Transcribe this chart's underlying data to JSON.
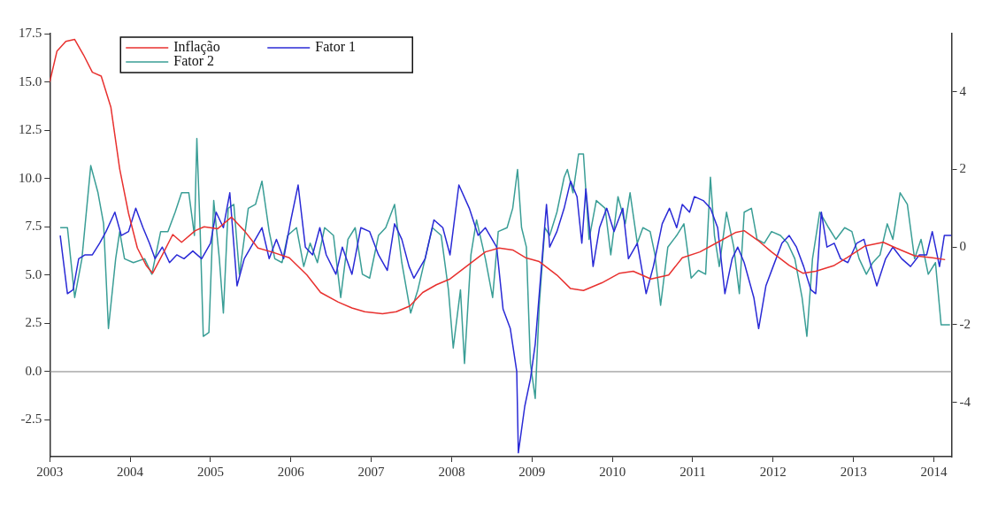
{
  "chart_data": {
    "type": "line",
    "xlim": [
      2003,
      2014.22
    ],
    "xticks": [
      2003,
      2004,
      2005,
      2006,
      2007,
      2008,
      2009,
      2010,
      2011,
      2012,
      2013,
      2014
    ],
    "ylim": [
      -4.4,
      17.5
    ],
    "yticks": [
      {
        "value": -2.5,
        "label": "-2.5"
      },
      {
        "value": 0,
        "label": "0.0"
      },
      {
        "value": 2.5,
        "label": "2.5"
      },
      {
        "value": 5,
        "label": "5.0"
      },
      {
        "value": 7.5,
        "label": "7.5"
      },
      {
        "value": 10,
        "label": "10.0"
      },
      {
        "value": 12.5,
        "label": "12.5"
      },
      {
        "value": 15,
        "label": "15.0"
      },
      {
        "value": 17.5,
        "label": "17.5"
      }
    ],
    "y2lim": [
      -5.4,
      5.5
    ],
    "y2ticks": [
      -4,
      -2,
      0,
      2,
      4
    ],
    "grid": false,
    "legend": "top left",
    "ref_lines": [
      {
        "axis": "y",
        "value": 0,
        "color": "#808080"
      }
    ],
    "series": [
      {
        "name": "Inflação",
        "color": "#e8312f",
        "x": [
          2003.0,
          2003.09,
          2003.2,
          2003.31,
          2003.42,
          2003.53,
          2003.64,
          2003.76,
          2003.87,
          2003.98,
          2004.09,
          2004.2,
          2004.28,
          2004.42,
          2004.53,
          2004.64,
          2004.81,
          2004.92,
          2005.09,
          2005.26,
          2005.42,
          2005.59,
          2005.76,
          2005.98,
          2006.2,
          2006.37,
          2006.59,
          2006.76,
          2006.92,
          2007.14,
          2007.31,
          2007.48,
          2007.64,
          2007.81,
          2007.98,
          2008.2,
          2008.42,
          2008.59,
          2008.76,
          2008.92,
          2009.09,
          2009.31,
          2009.48,
          2009.64,
          2009.87,
          2010.09,
          2010.26,
          2010.48,
          2010.7,
          2010.87,
          2011.09,
          2011.31,
          2011.53,
          2011.64,
          2011.81,
          2011.98,
          2012.2,
          2012.37,
          2012.53,
          2012.76,
          2012.92,
          2013.14,
          2013.37,
          2013.53,
          2013.76,
          2013.98,
          2014.14
        ],
        "values": [
          15.0,
          16.6,
          17.1,
          17.2,
          16.4,
          15.5,
          15.3,
          13.7,
          10.5,
          8.2,
          6.4,
          5.5,
          5.1,
          6.2,
          7.1,
          6.7,
          7.3,
          7.5,
          7.4,
          8.0,
          7.3,
          6.4,
          6.2,
          5.9,
          5.0,
          4.1,
          3.6,
          3.3,
          3.1,
          3.0,
          3.1,
          3.4,
          4.1,
          4.5,
          4.8,
          5.5,
          6.2,
          6.4,
          6.3,
          5.9,
          5.7,
          5.0,
          4.3,
          4.2,
          4.6,
          5.1,
          5.2,
          4.8,
          5.0,
          5.9,
          6.2,
          6.7,
          7.2,
          7.3,
          6.8,
          6.2,
          5.5,
          5.1,
          5.2,
          5.5,
          5.9,
          6.5,
          6.7,
          6.4,
          6.0,
          5.9,
          5.8
        ]
      },
      {
        "name": "Fator 1",
        "color": "#2a2ad6",
        "axis": "y2",
        "x": [
          2003.13,
          2003.22,
          2003.29,
          2003.36,
          2003.44,
          2003.53,
          2003.62,
          2003.7,
          2003.81,
          2003.89,
          2003.98,
          2004.07,
          2004.16,
          2004.24,
          2004.31,
          2004.4,
          2004.49,
          2004.58,
          2004.67,
          2004.78,
          2004.89,
          2005.0,
          2005.07,
          2005.16,
          2005.24,
          2005.33,
          2005.42,
          2005.53,
          2005.64,
          2005.73,
          2005.82,
          2005.91,
          2006.0,
          2006.09,
          2006.18,
          2006.27,
          2006.36,
          2006.44,
          2006.56,
          2006.64,
          2006.76,
          2006.87,
          2006.98,
          2007.09,
          2007.2,
          2007.29,
          2007.38,
          2007.47,
          2007.53,
          2007.67,
          2007.78,
          2007.89,
          2007.98,
          2008.09,
          2008.22,
          2008.33,
          2008.42,
          2008.56,
          2008.64,
          2008.73,
          2008.81,
          2008.83,
          2008.91,
          2008.98,
          2009.04,
          2009.11,
          2009.18,
          2009.22,
          2009.31,
          2009.4,
          2009.48,
          2009.56,
          2009.62,
          2009.67,
          2009.76,
          2009.84,
          2009.93,
          2010.02,
          2010.13,
          2010.2,
          2010.31,
          2010.42,
          2010.51,
          2010.62,
          2010.71,
          2010.8,
          2010.87,
          2010.96,
          2011.02,
          2011.13,
          2011.22,
          2011.31,
          2011.4,
          2011.49,
          2011.56,
          2011.64,
          2011.76,
          2011.82,
          2011.91,
          2012.0,
          2012.11,
          2012.2,
          2012.29,
          2012.38,
          2012.47,
          2012.53,
          2012.6,
          2012.67,
          2012.76,
          2012.84,
          2012.93,
          2013.04,
          2013.13,
          2013.22,
          2013.29,
          2013.4,
          2013.49,
          2013.6,
          2013.71,
          2013.82,
          2013.91,
          2013.98,
          2014.07,
          2014.13,
          2014.22
        ],
        "values": [
          0.3,
          -1.2,
          -1.1,
          -0.3,
          -0.2,
          -0.2,
          0.1,
          0.4,
          0.9,
          0.3,
          0.4,
          1.0,
          0.5,
          0.1,
          -0.3,
          0.0,
          -0.4,
          -0.2,
          -0.3,
          -0.1,
          -0.3,
          0.1,
          0.9,
          0.5,
          1.4,
          -1.0,
          -0.3,
          0.1,
          0.5,
          -0.3,
          0.2,
          -0.3,
          0.7,
          1.6,
          0.0,
          -0.2,
          0.5,
          -0.2,
          -0.7,
          0.0,
          -0.7,
          0.5,
          0.4,
          -0.2,
          -0.6,
          0.6,
          0.2,
          -0.5,
          -0.8,
          -0.3,
          0.7,
          0.5,
          -0.2,
          1.6,
          1.0,
          0.3,
          0.5,
          0.0,
          -1.6,
          -2.1,
          -3.2,
          -5.3,
          -4.1,
          -3.4,
          -2.5,
          -0.7,
          1.1,
          0.0,
          0.4,
          1.0,
          1.7,
          1.3,
          0.1,
          1.5,
          -0.5,
          0.5,
          1.0,
          0.4,
          1.0,
          -0.3,
          0.1,
          -1.2,
          -0.5,
          0.6,
          1.0,
          0.5,
          1.1,
          0.9,
          1.3,
          1.2,
          1.0,
          0.5,
          -1.2,
          -0.3,
          0.0,
          -0.4,
          -1.3,
          -2.1,
          -1.0,
          -0.5,
          0.1,
          0.3,
          0.0,
          -0.5,
          -1.1,
          -1.2,
          0.9,
          0.0,
          0.1,
          -0.3,
          -0.4,
          0.1,
          0.2,
          -0.5,
          -1.0,
          -0.3,
          0.0,
          -0.3,
          -0.5,
          -0.2,
          -0.2,
          0.4,
          -0.5,
          0.3,
          0.3
        ]
      },
      {
        "name": "Fator 2",
        "color": "#3a9e96",
        "axis": "y2",
        "x": [
          2003.13,
          2003.22,
          2003.31,
          2003.4,
          2003.51,
          2003.6,
          2003.67,
          2003.73,
          2003.82,
          2003.87,
          2003.93,
          2004.04,
          2004.18,
          2004.27,
          2004.38,
          2004.47,
          2004.56,
          2004.64,
          2004.73,
          2004.8,
          2004.83,
          2004.87,
          2004.91,
          2004.98,
          2005.04,
          2005.11,
          2005.16,
          2005.22,
          2005.29,
          2005.36,
          2005.47,
          2005.56,
          2005.64,
          2005.73,
          2005.8,
          2005.89,
          2005.96,
          2006.07,
          2006.16,
          2006.24,
          2006.33,
          2006.42,
          2006.53,
          2006.62,
          2006.71,
          2006.8,
          2006.89,
          2006.98,
          2007.09,
          2007.18,
          2007.29,
          2007.38,
          2007.49,
          2007.58,
          2007.67,
          2007.76,
          2007.87,
          2007.96,
          2008.02,
          2008.11,
          2008.16,
          2008.24,
          2008.31,
          2008.42,
          2008.51,
          2008.58,
          2008.69,
          2008.76,
          2008.82,
          2008.87,
          2008.93,
          2008.98,
          2009.04,
          2009.09,
          2009.16,
          2009.22,
          2009.31,
          2009.4,
          2009.44,
          2009.51,
          2009.58,
          2009.64,
          2009.71,
          2009.8,
          2009.91,
          2009.98,
          2010.07,
          2010.16,
          2010.22,
          2010.31,
          2010.38,
          2010.47,
          2010.53,
          2010.6,
          2010.69,
          2010.8,
          2010.89,
          2010.98,
          2011.07,
          2011.16,
          2011.22,
          2011.27,
          2011.33,
          2011.42,
          2011.51,
          2011.58,
          2011.64,
          2011.73,
          2011.8,
          2011.89,
          2011.98,
          2012.09,
          2012.18,
          2012.27,
          2012.36,
          2012.42,
          2012.49,
          2012.58,
          2012.69,
          2012.78,
          2012.89,
          2012.98,
          2013.07,
          2013.16,
          2013.24,
          2013.33,
          2013.42,
          2013.49,
          2013.58,
          2013.67,
          2013.76,
          2013.84,
          2013.93,
          2014.02,
          2014.09,
          2014.2
        ],
        "values": [
          0.5,
          0.5,
          -1.3,
          -0.3,
          2.1,
          1.4,
          0.6,
          -2.1,
          -0.3,
          0.4,
          -0.3,
          -0.4,
          -0.3,
          -0.7,
          0.4,
          0.4,
          0.9,
          1.4,
          1.4,
          0.3,
          2.8,
          0.5,
          -2.3,
          -2.2,
          1.2,
          -0.3,
          -1.7,
          1.0,
          1.1,
          -0.7,
          1.0,
          1.1,
          1.7,
          0.4,
          -0.3,
          -0.4,
          0.3,
          0.5,
          -0.5,
          0.1,
          -0.4,
          0.5,
          0.3,
          -1.3,
          0.2,
          0.5,
          -0.7,
          -0.8,
          0.3,
          0.5,
          1.1,
          -0.4,
          -1.7,
          -1.1,
          -0.3,
          0.5,
          0.3,
          -1.1,
          -2.6,
          -1.1,
          -3.0,
          -0.2,
          0.7,
          -0.3,
          -1.3,
          0.4,
          0.5,
          1.0,
          2.0,
          0.5,
          0.0,
          -3.0,
          -3.9,
          -1.5,
          0.5,
          0.3,
          0.9,
          1.8,
          2.0,
          1.4,
          2.4,
          2.4,
          0.2,
          1.2,
          1.0,
          -0.2,
          1.3,
          0.6,
          1.4,
          0.1,
          0.5,
          0.4,
          -0.2,
          -1.5,
          0.0,
          0.3,
          0.6,
          -0.8,
          -0.6,
          -0.7,
          1.8,
          0.3,
          -0.5,
          0.9,
          0.0,
          -1.2,
          0.9,
          1.0,
          0.2,
          0.1,
          0.4,
          0.3,
          0.1,
          -0.3,
          -1.3,
          -2.3,
          -0.3,
          0.9,
          0.5,
          0.2,
          0.5,
          0.4,
          -0.3,
          -0.7,
          -0.4,
          -0.2,
          0.6,
          0.2,
          1.4,
          1.1,
          -0.3,
          0.2,
          -0.7,
          -0.4,
          -2.0,
          -2.0
        ]
      }
    ]
  }
}
